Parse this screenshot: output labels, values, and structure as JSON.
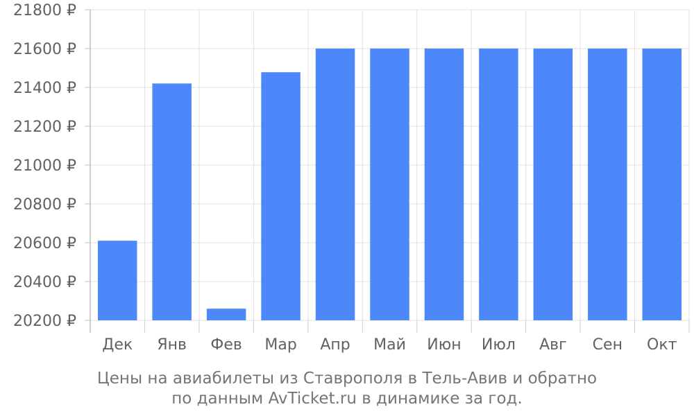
{
  "chart_data": {
    "type": "bar",
    "categories": [
      "Дек",
      "Янв",
      "Фев",
      "Мар",
      "Апр",
      "Май",
      "Июн",
      "Июл",
      "Авг",
      "Сен",
      "Окт"
    ],
    "values": [
      20610,
      21420,
      20260,
      21478,
      21600,
      21600,
      21600,
      21600,
      21600,
      21600,
      21600
    ],
    "ylim": [
      20200,
      21800
    ],
    "yticks": [
      20200,
      20400,
      20600,
      20800,
      21000,
      21200,
      21400,
      21600,
      21800
    ],
    "ytick_suffix": " ₽",
    "grid": true,
    "bar_color": "#4d88fb"
  },
  "caption": {
    "line1": "Цены на авиабилеты из Ставрополя в Тель-Авив и обратно",
    "line2": "по данным AvTicket.ru в динамике за год."
  }
}
